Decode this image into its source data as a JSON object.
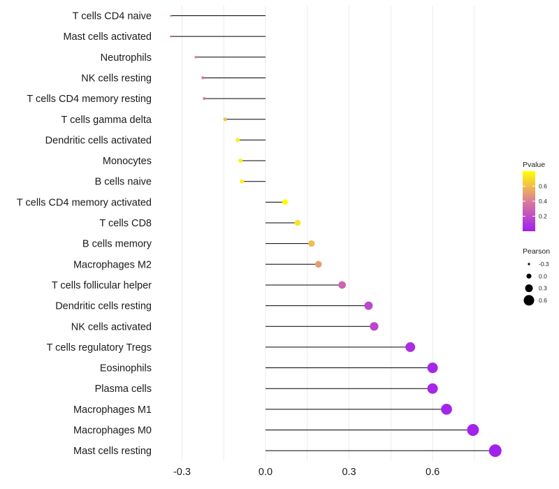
{
  "chart_data": {
    "type": "lollipop",
    "title": "",
    "xlabel": "",
    "ylabel": "",
    "xlim": [
      -0.34,
      0.83
    ],
    "xticks": [
      -0.3,
      0.0,
      0.3,
      0.6
    ],
    "xtick_labels": [
      "-0.3",
      "0.0",
      "0.3",
      "0.6"
    ],
    "grid": true,
    "categories": [
      "T cells CD4 naive",
      "Mast cells activated",
      "Neutrophils",
      "NK cells resting",
      "T cells CD4 memory resting",
      "T cells gamma delta",
      "Dendritic cells activated",
      "Monocytes",
      "B cells naive",
      "T cells CD4 memory activated",
      "T cells CD8",
      "B cells memory",
      "Macrophages M2",
      "T cells follicular helper",
      "Dendritic cells resting",
      "NK cells activated",
      "T cells regulatory  Tregs",
      "Eosinophils",
      "Plasma cells",
      "Macrophages M1",
      "Macrophages M0",
      "Mast cells resting"
    ],
    "pearson": [
      -0.34,
      -0.34,
      -0.25,
      -0.225,
      -0.22,
      -0.145,
      -0.1,
      -0.09,
      -0.085,
      0.07,
      0.115,
      0.165,
      0.19,
      0.275,
      0.37,
      0.39,
      0.52,
      0.6,
      0.6,
      0.65,
      0.745,
      0.825
    ],
    "pvalue": [
      0.3,
      0.3,
      0.43,
      0.38,
      0.4,
      0.62,
      0.75,
      0.76,
      0.76,
      0.8,
      0.72,
      0.6,
      0.5,
      0.3,
      0.18,
      0.17,
      0.06,
      0.03,
      0.03,
      0.02,
      0.01,
      0.005
    ],
    "legend_position": "right",
    "legends": {
      "color": {
        "title": "Pvalue",
        "ticks": [
          0.6,
          0.4,
          0.2
        ],
        "tick_labels": [
          "0.6",
          "0.4",
          "0.2"
        ],
        "range": [
          0.0,
          0.8
        ],
        "low_color": "#a020f0",
        "mid_color": "#dc7c9a",
        "high_color": "#ffff00"
      },
      "size": {
        "title": "Pearson",
        "values": [
          -0.3,
          0.0,
          0.3,
          0.6
        ],
        "labels": [
          "-0.3",
          "0.0",
          "0.3",
          "0.6"
        ],
        "point_color": "#000000"
      }
    },
    "stem_color": "#000000"
  }
}
